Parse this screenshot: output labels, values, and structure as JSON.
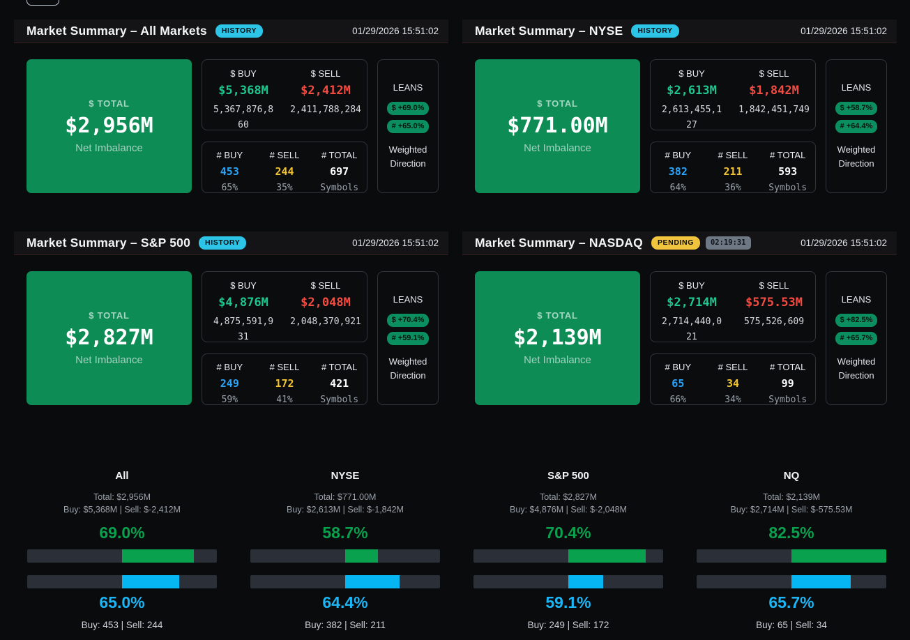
{
  "colors": {
    "card_green": "#0d8c55",
    "accent_green": "#0aa14e",
    "accent_blue": "#1cb5f5",
    "count_blue": "#2ba3f7",
    "accent_yellow": "#f2c230",
    "accent_red": "#f24c42",
    "badge_cyan": "#2cc5e8",
    "badge_amber": "#f0c43c",
    "badge_timer_gray": "#6d7884",
    "lean_badge_green": "#0c8f60",
    "header_divider_maroon": "#3a1d1d"
  },
  "panels": [
    {
      "title": "Market Summary – All Markets",
      "badge": "HISTORY",
      "timestamp": "01/29/2026 15:51:02",
      "total": {
        "label": "$ TOTAL",
        "value": "$2,956M",
        "sub": "Net Imbalance"
      },
      "dollar": {
        "buy_label": "$ BUY",
        "buy_value": "$5,368M",
        "buy_full": "5,367,876,860",
        "sell_label": "$ SELL",
        "sell_value": "$2,412M",
        "sell_full": "2,411,788,284"
      },
      "counts": {
        "buy_label": "# BUY",
        "buy": "453",
        "buy_pct": "65%",
        "sell_label": "# SELL",
        "sell": "244",
        "sell_pct": "35%",
        "total_label": "# TOTAL",
        "total": "697",
        "total_sub": "Symbols"
      },
      "leans": {
        "label": "LEANS",
        "dollar_badge": "$ +69.0%",
        "count_badge": "# +65.0%",
        "caption": "Weighted Direction"
      }
    },
    {
      "title": "Market Summary – NYSE",
      "badge": "HISTORY",
      "timestamp": "01/29/2026 15:51:02",
      "total": {
        "label": "$ TOTAL",
        "value": "$771.00M",
        "sub": "Net Imbalance"
      },
      "dollar": {
        "buy_label": "$ BUY",
        "buy_value": "$2,613M",
        "buy_full": "2,613,455,127",
        "sell_label": "$ SELL",
        "sell_value": "$1,842M",
        "sell_full": "1,842,451,749"
      },
      "counts": {
        "buy_label": "# BUY",
        "buy": "382",
        "buy_pct": "64%",
        "sell_label": "# SELL",
        "sell": "211",
        "sell_pct": "36%",
        "total_label": "# TOTAL",
        "total": "593",
        "total_sub": "Symbols"
      },
      "leans": {
        "label": "LEANS",
        "dollar_badge": "$ +58.7%",
        "count_badge": "# +64.4%",
        "caption": "Weighted Direction"
      }
    },
    {
      "title": "Market Summary – S&P 500",
      "badge": "HISTORY",
      "timestamp": "01/29/2026 15:51:02",
      "total": {
        "label": "$ TOTAL",
        "value": "$2,827M",
        "sub": "Net Imbalance"
      },
      "dollar": {
        "buy_label": "$ BUY",
        "buy_value": "$4,876M",
        "buy_full": "4,875,591,931",
        "sell_label": "$ SELL",
        "sell_value": "$2,048M",
        "sell_full": "2,048,370,921"
      },
      "counts": {
        "buy_label": "# BUY",
        "buy": "249",
        "buy_pct": "59%",
        "sell_label": "# SELL",
        "sell": "172",
        "sell_pct": "41%",
        "total_label": "# TOTAL",
        "total": "421",
        "total_sub": "Symbols"
      },
      "leans": {
        "label": "LEANS",
        "dollar_badge": "$ +70.4%",
        "count_badge": "# +59.1%",
        "caption": "Weighted Direction"
      }
    },
    {
      "title": "Market Summary – NASDAQ",
      "badge": "PENDING",
      "timer": "02:19:31",
      "timestamp": "01/29/2026 15:51:02",
      "total": {
        "label": "$ TOTAL",
        "value": "$2,139M",
        "sub": "Net Imbalance"
      },
      "dollar": {
        "buy_label": "$ BUY",
        "buy_value": "$2,714M",
        "buy_full": "2,714,440,021",
        "sell_label": "$ SELL",
        "sell_value": "$575.53M",
        "sell_full": "575,526,609"
      },
      "counts": {
        "buy_label": "# BUY",
        "buy": "65",
        "buy_pct": "66%",
        "sell_label": "# SELL",
        "sell": "34",
        "sell_pct": "34%",
        "total_label": "# TOTAL",
        "total": "99",
        "total_sub": "Symbols"
      },
      "leans": {
        "label": "LEANS",
        "dollar_badge": "$ +82.5%",
        "count_badge": "# +65.7%",
        "caption": "Weighted Direction"
      }
    }
  ],
  "summary_columns": [
    {
      "name": "All",
      "total_line": "Total: $2,956M",
      "buysell_line": "Buy: $5,368M | Sell: $-2,412M",
      "dollar_pct": "69.0%",
      "dollar_pct_value": 69.0,
      "count_pct": "65.0%",
      "count_pct_value": 65.0,
      "counts_line": "Buy: 453 | Sell: 244"
    },
    {
      "name": "NYSE",
      "total_line": "Total: $771.00M",
      "buysell_line": "Buy: $2,613M | Sell: $-1,842M",
      "dollar_pct": "58.7%",
      "dollar_pct_value": 58.7,
      "count_pct": "64.4%",
      "count_pct_value": 64.4,
      "counts_line": "Buy: 382 | Sell: 211"
    },
    {
      "name": "S&P 500",
      "total_line": "Total: $2,827M",
      "buysell_line": "Buy: $4,876M | Sell: $-2,048M",
      "dollar_pct": "70.4%",
      "dollar_pct_value": 70.4,
      "count_pct": "59.1%",
      "count_pct_value": 59.1,
      "counts_line": "Buy: 249 | Sell: 172"
    },
    {
      "name": "NQ",
      "total_line": "Total: $2,139M",
      "buysell_line": "Buy: $2,714M | Sell: $-575.53M",
      "dollar_pct": "82.5%",
      "dollar_pct_value": 82.5,
      "count_pct": "65.7%",
      "count_pct_value": 65.7,
      "counts_line": "Buy: 65 | Sell: 34"
    }
  ]
}
